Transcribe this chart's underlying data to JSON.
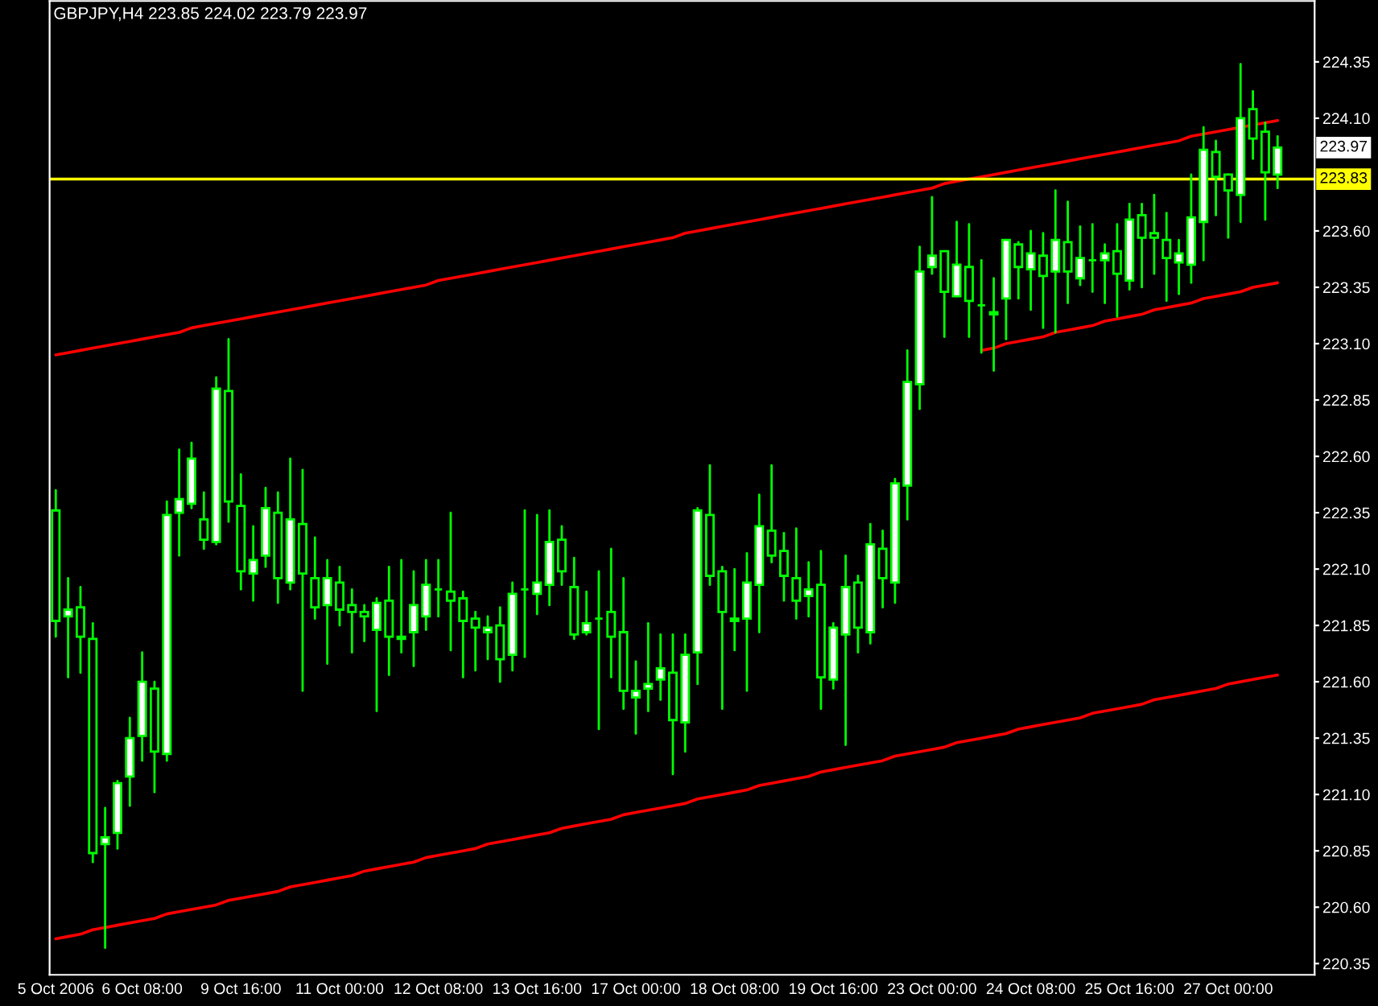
{
  "chart_data": {
    "type": "candlestick",
    "title": "GBPJPY,H4 223.85 224.02 223.79 223.97",
    "categories": [
      "5 Oct 2006",
      null,
      null,
      null,
      null,
      null,
      null,
      "6 Oct 08:00",
      null,
      null,
      null,
      null,
      null,
      null,
      null,
      "9 Oct 16:00",
      null,
      null,
      null,
      null,
      null,
      null,
      null,
      "11 Oct 00:00",
      null,
      null,
      null,
      null,
      null,
      null,
      null,
      "12 Oct 08:00",
      null,
      null,
      null,
      null,
      null,
      null,
      null,
      "13 Oct 16:00",
      null,
      null,
      null,
      null,
      null,
      null,
      null,
      "17 Oct 00:00",
      null,
      null,
      null,
      null,
      null,
      null,
      null,
      "18 Oct 08:00",
      null,
      null,
      null,
      null,
      null,
      null,
      null,
      "19 Oct 16:00",
      null,
      null,
      null,
      null,
      null,
      null,
      null,
      "23 Oct 00:00",
      null,
      null,
      null,
      null,
      null,
      null,
      null,
      "24 Oct 08:00",
      null,
      null,
      null,
      null,
      null,
      null,
      null,
      "25 Oct 16:00",
      null,
      null,
      null,
      null,
      null,
      null,
      null,
      "27 Oct 00:00",
      null,
      null,
      null,
      null
    ],
    "ohlc": [
      [
        222.36,
        222.45,
        221.8,
        221.87
      ],
      [
        221.89,
        222.06,
        221.62,
        221.92
      ],
      [
        221.93,
        222.02,
        221.64,
        221.8
      ],
      [
        221.79,
        221.86,
        220.8,
        220.84
      ],
      [
        220.88,
        221.04,
        220.42,
        220.91
      ],
      [
        220.93,
        221.16,
        220.86,
        221.15
      ],
      [
        221.18,
        221.44,
        221.05,
        221.35
      ],
      [
        221.36,
        221.73,
        221.25,
        221.6
      ],
      [
        221.57,
        221.6,
        221.11,
        221.29
      ],
      [
        221.28,
        222.4,
        221.25,
        222.34
      ],
      [
        222.35,
        222.63,
        222.16,
        222.41
      ],
      [
        222.39,
        222.66,
        222.37,
        222.59
      ],
      [
        222.32,
        222.44,
        222.19,
        222.23
      ],
      [
        222.22,
        222.95,
        222.21,
        222.9
      ],
      [
        222.89,
        223.12,
        222.31,
        222.4
      ],
      [
        222.38,
        222.52,
        222.01,
        222.09
      ],
      [
        222.08,
        222.29,
        221.96,
        222.14
      ],
      [
        222.16,
        222.46,
        222.11,
        222.37
      ],
      [
        222.35,
        222.44,
        221.95,
        222.06
      ],
      [
        222.04,
        222.59,
        222.01,
        222.32
      ],
      [
        222.3,
        222.54,
        221.56,
        222.08
      ],
      [
        222.06,
        222.24,
        221.88,
        221.93
      ],
      [
        221.94,
        222.14,
        221.68,
        222.06
      ],
      [
        222.04,
        222.11,
        221.85,
        221.92
      ],
      [
        221.94,
        222.01,
        221.73,
        221.91
      ],
      [
        221.91,
        221.94,
        221.78,
        221.89
      ],
      [
        221.83,
        221.97,
        221.47,
        221.95
      ],
      [
        221.96,
        222.11,
        221.63,
        221.8
      ],
      [
        221.79,
        222.14,
        221.73,
        221.8
      ],
      [
        221.82,
        222.09,
        221.67,
        221.94
      ],
      [
        221.89,
        222.14,
        221.83,
        222.03
      ],
      [
        222.01,
        222.14,
        221.89,
        222.01
      ],
      [
        222.0,
        222.35,
        221.74,
        221.96
      ],
      [
        221.97,
        222.0,
        221.62,
        221.87
      ],
      [
        221.88,
        221.91,
        221.65,
        221.84
      ],
      [
        221.82,
        221.89,
        221.7,
        221.84
      ],
      [
        221.85,
        221.93,
        221.6,
        221.7
      ],
      [
        221.72,
        222.04,
        221.65,
        221.99
      ],
      [
        222.01,
        222.36,
        221.71,
        222.01
      ],
      [
        221.99,
        222.34,
        221.9,
        222.04
      ],
      [
        222.03,
        222.36,
        221.94,
        222.22
      ],
      [
        222.23,
        222.29,
        222.03,
        222.09
      ],
      [
        222.02,
        222.15,
        221.79,
        221.81
      ],
      [
        221.82,
        222.0,
        221.81,
        221.86
      ],
      [
        221.88,
        222.09,
        221.39,
        221.88
      ],
      [
        221.91,
        222.19,
        221.62,
        221.8
      ],
      [
        221.82,
        222.06,
        221.48,
        221.56
      ],
      [
        221.53,
        221.69,
        221.37,
        221.56
      ],
      [
        221.57,
        221.86,
        221.47,
        221.59
      ],
      [
        221.61,
        221.81,
        221.52,
        221.66
      ],
      [
        221.64,
        221.81,
        221.19,
        221.43
      ],
      [
        221.42,
        221.81,
        221.29,
        221.72
      ],
      [
        221.73,
        222.37,
        221.59,
        222.36
      ],
      [
        222.34,
        222.56,
        222.03,
        222.07
      ],
      [
        222.09,
        222.11,
        221.48,
        221.91
      ],
      [
        221.88,
        222.1,
        221.74,
        221.87
      ],
      [
        221.88,
        222.17,
        221.56,
        222.04
      ],
      [
        222.03,
        222.43,
        221.82,
        222.29
      ],
      [
        222.27,
        222.56,
        222.13,
        222.16
      ],
      [
        222.18,
        222.26,
        221.96,
        222.07
      ],
      [
        222.06,
        222.28,
        221.88,
        221.96
      ],
      [
        221.98,
        222.13,
        221.89,
        222.01
      ],
      [
        222.03,
        222.18,
        221.48,
        221.62
      ],
      [
        221.61,
        221.86,
        221.57,
        221.84
      ],
      [
        221.81,
        222.16,
        221.32,
        222.02
      ],
      [
        222.04,
        222.07,
        221.73,
        221.84
      ],
      [
        221.82,
        222.3,
        221.77,
        222.21
      ],
      [
        222.19,
        222.27,
        221.93,
        222.06
      ],
      [
        222.04,
        222.5,
        221.95,
        222.48
      ],
      [
        222.47,
        223.07,
        222.32,
        222.93
      ],
      [
        222.92,
        223.53,
        222.81,
        223.42
      ],
      [
        223.44,
        223.75,
        223.41,
        223.49
      ],
      [
        223.51,
        223.51,
        223.13,
        223.33
      ],
      [
        223.31,
        223.64,
        223.31,
        223.45
      ],
      [
        223.44,
        223.63,
        223.13,
        223.29
      ],
      [
        223.27,
        223.47,
        223.06,
        223.27
      ],
      [
        223.24,
        223.39,
        222.98,
        223.23
      ],
      [
        223.3,
        223.56,
        223.12,
        223.56
      ],
      [
        223.54,
        223.55,
        223.3,
        223.44
      ],
      [
        223.43,
        223.6,
        223.25,
        223.5
      ],
      [
        223.49,
        223.59,
        223.17,
        223.4
      ],
      [
        223.42,
        223.78,
        223.15,
        223.56
      ],
      [
        223.55,
        223.73,
        223.28,
        223.42
      ],
      [
        223.39,
        223.62,
        223.36,
        223.48
      ],
      [
        223.47,
        223.63,
        223.33,
        223.47
      ],
      [
        223.47,
        223.54,
        223.28,
        223.5
      ],
      [
        223.51,
        223.63,
        223.22,
        223.41
      ],
      [
        223.38,
        223.72,
        223.34,
        223.65
      ],
      [
        223.67,
        223.72,
        223.35,
        223.57
      ],
      [
        223.59,
        223.76,
        223.41,
        223.57
      ],
      [
        223.56,
        223.68,
        223.29,
        223.48
      ],
      [
        223.46,
        223.56,
        223.32,
        223.5
      ],
      [
        223.45,
        223.85,
        223.37,
        223.66
      ],
      [
        223.64,
        224.06,
        223.47,
        223.96
      ],
      [
        223.95,
        224.0,
        223.67,
        223.84
      ],
      [
        223.85,
        223.85,
        223.57,
        223.78
      ],
      [
        223.76,
        224.34,
        223.64,
        224.1
      ],
      [
        224.14,
        224.22,
        223.92,
        224.01
      ],
      [
        224.04,
        224.08,
        223.65,
        223.86
      ],
      [
        223.85,
        224.02,
        223.79,
        223.97
      ]
    ],
    "series": [
      {
        "type": "line",
        "color": "#ff0000",
        "values": [
          223.05,
          223.06,
          223.07,
          223.08,
          223.09,
          223.1,
          223.11,
          223.12,
          223.13,
          223.14,
          223.15,
          223.17,
          223.18,
          223.19,
          223.2,
          223.21,
          223.22,
          223.23,
          223.24,
          223.25,
          223.26,
          223.27,
          223.28,
          223.29,
          223.3,
          223.31,
          223.32,
          223.33,
          223.34,
          223.35,
          223.36,
          223.38,
          223.39,
          223.4,
          223.41,
          223.42,
          223.43,
          223.44,
          223.45,
          223.46,
          223.47,
          223.48,
          223.49,
          223.5,
          223.51,
          223.52,
          223.53,
          223.54,
          223.55,
          223.56,
          223.57,
          223.59,
          223.6,
          223.61,
          223.62,
          223.63,
          223.64,
          223.65,
          223.66,
          223.67,
          223.68,
          223.69,
          223.7,
          223.71,
          223.72,
          223.73,
          223.74,
          223.75,
          223.76,
          223.77,
          223.78,
          223.79,
          223.81,
          223.82,
          223.83,
          223.84,
          223.85,
          223.86,
          223.87,
          223.88,
          223.89,
          223.9,
          223.91,
          223.92,
          223.93,
          223.94,
          223.95,
          223.96,
          223.97,
          223.98,
          223.99,
          224.0,
          224.02,
          224.03,
          224.04,
          224.05,
          224.06,
          224.07,
          224.08,
          224.09
        ]
      },
      {
        "type": "line",
        "color": "#ff0000",
        "values": [
          220.46,
          220.47,
          220.48,
          220.5,
          220.51,
          220.52,
          220.53,
          220.54,
          220.55,
          220.57,
          220.58,
          220.59,
          220.6,
          220.61,
          220.63,
          220.64,
          220.65,
          220.66,
          220.67,
          220.69,
          220.7,
          220.71,
          220.72,
          220.73,
          220.74,
          220.76,
          220.77,
          220.78,
          220.79,
          220.8,
          220.82,
          220.83,
          220.84,
          220.85,
          220.86,
          220.88,
          220.89,
          220.9,
          220.91,
          220.92,
          220.93,
          220.95,
          220.96,
          220.97,
          220.98,
          220.99,
          221.01,
          221.02,
          221.03,
          221.04,
          221.05,
          221.06,
          221.08,
          221.09,
          221.1,
          221.11,
          221.12,
          221.14,
          221.15,
          221.16,
          221.17,
          221.18,
          221.2,
          221.21,
          221.22,
          221.23,
          221.24,
          221.25,
          221.27,
          221.28,
          221.29,
          221.3,
          221.31,
          221.33,
          221.34,
          221.35,
          221.36,
          221.37,
          221.39,
          221.4,
          221.41,
          221.42,
          221.43,
          221.44,
          221.46,
          221.47,
          221.48,
          221.49,
          221.5,
          221.52,
          221.53,
          221.54,
          221.55,
          221.56,
          221.57,
          221.59,
          221.6,
          221.61,
          221.62,
          221.63
        ]
      },
      {
        "type": "line",
        "color": "#ff0000",
        "values": [
          null,
          null,
          null,
          null,
          null,
          null,
          null,
          null,
          null,
          null,
          null,
          null,
          null,
          null,
          null,
          null,
          null,
          null,
          null,
          null,
          null,
          null,
          null,
          null,
          null,
          null,
          null,
          null,
          null,
          null,
          null,
          null,
          null,
          null,
          null,
          null,
          null,
          null,
          null,
          null,
          null,
          null,
          null,
          null,
          null,
          null,
          null,
          null,
          null,
          null,
          null,
          null,
          null,
          null,
          null,
          null,
          null,
          null,
          null,
          null,
          null,
          null,
          null,
          null,
          null,
          null,
          null,
          null,
          null,
          null,
          null,
          null,
          null,
          null,
          null,
          223.07,
          223.08,
          223.1,
          223.11,
          223.12,
          223.13,
          223.15,
          223.16,
          223.17,
          223.18,
          223.2,
          223.21,
          223.22,
          223.23,
          223.25,
          223.26,
          223.27,
          223.28,
          223.3,
          223.31,
          223.32,
          223.33,
          223.35,
          223.36,
          223.37
        ]
      }
    ],
    "ref_lines": [
      {
        "axis": "y",
        "value": 223.83,
        "label": "223.83",
        "color": "#ffff00"
      }
    ],
    "annotations": [
      "223.97"
    ],
    "ylim": [
      220.3,
      224.62
    ],
    "yticks": [
      {
        "value": 224.35,
        "label": "224.35"
      },
      {
        "value": 224.1,
        "label": "224.10"
      },
      {
        "value": 223.6,
        "label": "223.60"
      },
      {
        "value": 223.35,
        "label": "223.35"
      },
      {
        "value": 223.1,
        "label": "223.10"
      },
      {
        "value": 222.85,
        "label": "222.85"
      },
      {
        "value": 222.6,
        "label": "222.60"
      },
      {
        "value": 222.35,
        "label": "222.35"
      },
      {
        "value": 222.1,
        "label": "222.10"
      },
      {
        "value": 221.85,
        "label": "221.85"
      },
      {
        "value": 221.6,
        "label": "221.60"
      },
      {
        "value": 221.35,
        "label": "221.35"
      },
      {
        "value": 221.1,
        "label": "221.10"
      },
      {
        "value": 220.85,
        "label": "220.85"
      },
      {
        "value": 220.6,
        "label": "220.60"
      },
      {
        "value": 220.35,
        "label": "220.35"
      }
    ]
  }
}
